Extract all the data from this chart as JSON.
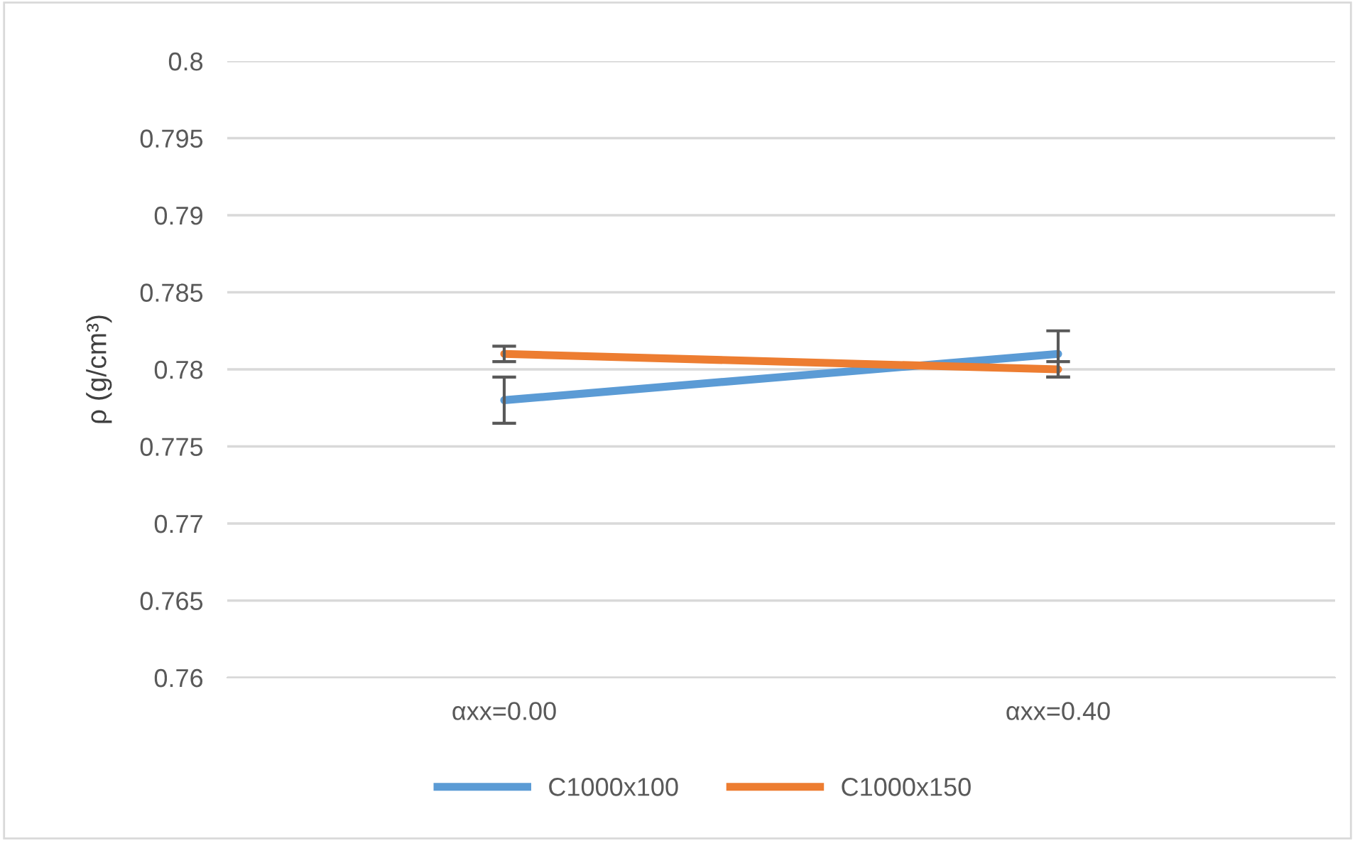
{
  "chart_data": {
    "type": "line",
    "ylabel": "ρ (g/cm³)",
    "categories": [
      "αxx=0.00",
      "αxx=0.40"
    ],
    "series": [
      {
        "name": "C1000x100",
        "color": "#5b9bd5",
        "values": [
          0.778,
          0.781
        ],
        "errors": [
          0.0015,
          0.0015
        ]
      },
      {
        "name": "C1000x150",
        "color": "#ed7d31",
        "values": [
          0.781,
          0.78
        ],
        "errors": [
          0.0005,
          0.0005
        ]
      }
    ],
    "ylim": [
      0.76,
      0.8
    ],
    "yticks": [
      0.76,
      0.765,
      0.77,
      0.775,
      0.78,
      0.785,
      0.79,
      0.795,
      0.8
    ],
    "grid": "y",
    "legend": "bottom",
    "marker": "none",
    "line_style": "solid"
  }
}
